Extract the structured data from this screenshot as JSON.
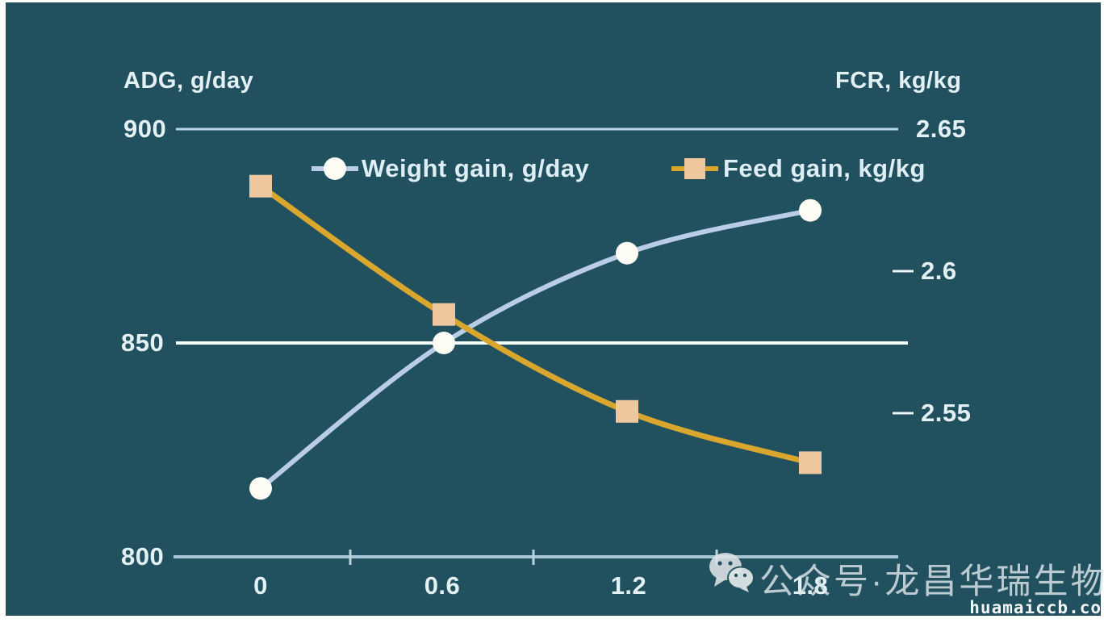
{
  "chart_data": {
    "type": "line",
    "x": [
      0,
      0.6,
      1.2,
      1.8
    ],
    "x_tick_labels": [
      "0",
      "0.6",
      "1.2",
      "1.8"
    ],
    "left_axis": {
      "title": "ADG, g/day",
      "ticks": [
        "900",
        "850",
        "800"
      ],
      "range": [
        800,
        900
      ]
    },
    "right_axis": {
      "title": "FCR, kg/kg",
      "ticks": [
        "2.65",
        "2.6",
        "2.55"
      ],
      "range": [
        2.5,
        2.65
      ]
    },
    "series": [
      {
        "name": "Weight gain, g/day",
        "axis": "left",
        "marker": "circle",
        "line_color": "#b9cde6",
        "marker_color": "#fdfcf4",
        "values": [
          816,
          850,
          871,
          881
        ]
      },
      {
        "name": "Feed gain, kg/kg",
        "axis": "right",
        "marker": "square",
        "line_color": "#d9a62e",
        "marker_color": "#eec79e",
        "values": [
          2.63,
          2.585,
          2.551,
          2.533
        ]
      }
    ],
    "legend_position": "top-center",
    "grid": "horizontal"
  },
  "watermark": {
    "wechat_icon": "wechat-icon",
    "label": "公众号·龙昌华瑞生物",
    "site": "huamaiccb.co"
  },
  "colors": {
    "background": "#21505f",
    "frame": "#ffffff",
    "grid": "#b7d3dc",
    "grid_bright": "#f2fffc",
    "x_axis": "#a8c7d5",
    "text": "#e3f1f5"
  }
}
